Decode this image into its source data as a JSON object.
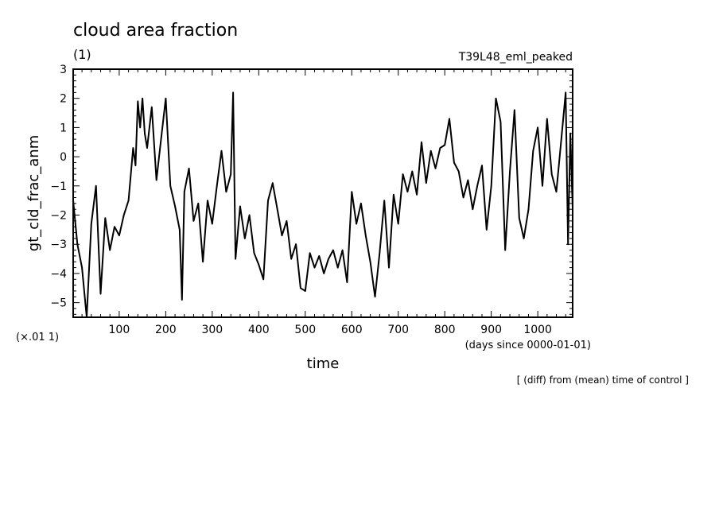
{
  "chart_data": {
    "type": "line",
    "title": "cloud area fraction",
    "units": "(1)",
    "run_label": "T39L48_eml_peaked",
    "ylabel": "gt_cld_frac_anm",
    "y_scale_note": "(×.01 1)",
    "xlabel": "time",
    "x_units": "(days since 0000-01-01)",
    "footnote": "[ (diff) from (mean) time of control ]",
    "xlim": [
      1,
      1075
    ],
    "ylim": [
      -5.5,
      3.0
    ],
    "x_ticks": [
      100,
      200,
      300,
      400,
      500,
      600,
      700,
      800,
      900,
      1000
    ],
    "y_ticks": [
      -5,
      -4,
      -3,
      -2,
      -1,
      0,
      1,
      2,
      3
    ],
    "line_color": "#000000",
    "grid": false,
    "series": [
      {
        "x": [
          1,
          10,
          20,
          30,
          40,
          50,
          60,
          70,
          80,
          90,
          100,
          110,
          120,
          130,
          135,
          140,
          145,
          150,
          155,
          160,
          170,
          180,
          190,
          200,
          210,
          220,
          230,
          235,
          240,
          250,
          260,
          270,
          280,
          290,
          300,
          310,
          320,
          330,
          340,
          345,
          350,
          360,
          370,
          380,
          390,
          400,
          410,
          420,
          430,
          440,
          450,
          460,
          470,
          480,
          490,
          500,
          510,
          520,
          530,
          540,
          550,
          560,
          570,
          580,
          590,
          600,
          610,
          620,
          630,
          640,
          650,
          660,
          670,
          680,
          690,
          700,
          710,
          720,
          730,
          740,
          750,
          760,
          770,
          780,
          790,
          800,
          810,
          820,
          830,
          840,
          850,
          860,
          870,
          880,
          890,
          900,
          910,
          920,
          930,
          940,
          950,
          960,
          970,
          980,
          990,
          1000,
          1010,
          1020,
          1030,
          1040,
          1050,
          1060,
          1065,
          1070,
          1075
        ],
        "y": [
          -1.5,
          -3.0,
          -3.8,
          -5.5,
          -2.3,
          -1.0,
          -4.7,
          -2.1,
          -3.2,
          -2.4,
          -2.7,
          -2.0,
          -1.5,
          0.3,
          -0.3,
          1.9,
          1.0,
          2.0,
          0.8,
          0.3,
          1.7,
          -0.8,
          0.6,
          2.0,
          -1.0,
          -1.7,
          -2.5,
          -4.9,
          -1.2,
          -0.4,
          -2.2,
          -1.6,
          -3.6,
          -1.5,
          -2.3,
          -1.0,
          0.2,
          -1.2,
          -0.6,
          2.2,
          -3.5,
          -1.7,
          -2.8,
          -2.0,
          -3.3,
          -3.7,
          -4.2,
          -1.5,
          -0.9,
          -1.8,
          -2.7,
          -2.2,
          -3.5,
          -3.0,
          -4.5,
          -4.6,
          -3.3,
          -3.8,
          -3.4,
          -4.0,
          -3.5,
          -3.2,
          -3.8,
          -3.2,
          -4.3,
          -1.2,
          -2.3,
          -1.6,
          -2.7,
          -3.6,
          -4.8,
          -3.3,
          -1.5,
          -3.8,
          -1.3,
          -2.3,
          -0.6,
          -1.2,
          -0.5,
          -1.3,
          0.5,
          -0.9,
          0.2,
          -0.4,
          0.3,
          0.4,
          1.3,
          -0.2,
          -0.5,
          -1.4,
          -0.8,
          -1.8,
          -1.0,
          -0.3,
          -2.5,
          -1.0,
          2.0,
          1.2,
          -3.2,
          -0.5,
          1.6,
          -2.1,
          -2.8,
          -1.8,
          0.2,
          1.0,
          -1.0,
          1.3,
          -0.6,
          -1.2,
          0.5,
          2.2,
          -3.0,
          0.8,
          -1.8
        ]
      }
    ]
  }
}
